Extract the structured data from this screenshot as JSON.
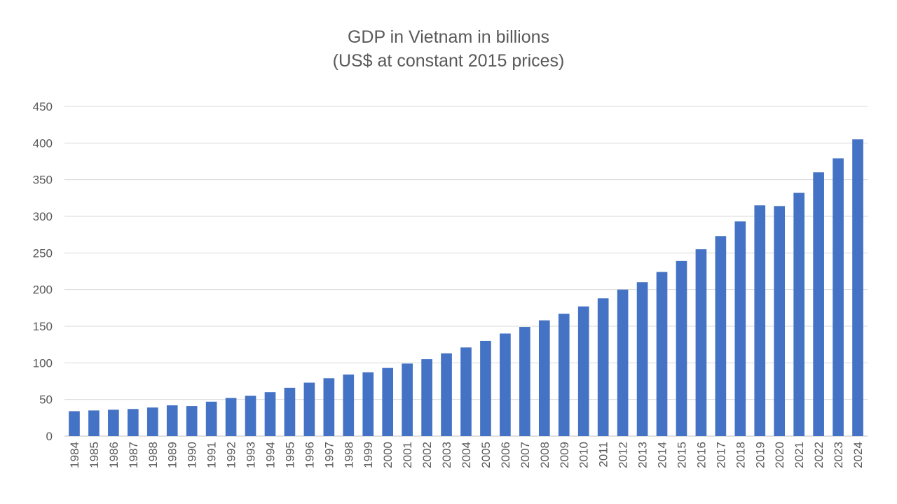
{
  "chart_data": {
    "type": "bar",
    "title": [
      "GDP in Vietnam in billions",
      "(US$ at constant 2015 prices)"
    ],
    "xlabel": "",
    "ylabel": "",
    "ylim": [
      0,
      450
    ],
    "yticks": [
      0,
      50,
      100,
      150,
      200,
      250,
      300,
      350,
      400,
      450
    ],
    "grid": true,
    "legend": "none",
    "bar_color": "#4472C4",
    "categories": [
      "1984",
      "1985",
      "1986",
      "1987",
      "1988",
      "1989",
      "1990",
      "1991",
      "1992",
      "1993",
      "1994",
      "1995",
      "1996",
      "1997",
      "1998",
      "1999",
      "2000",
      "2001",
      "2002",
      "2003",
      "2004",
      "2005",
      "2006",
      "2007",
      "2008",
      "2009",
      "2010",
      "2011",
      "2012",
      "2013",
      "2014",
      "2015",
      "2016",
      "2017",
      "2018",
      "2019",
      "2020",
      "2021",
      "2022",
      "2023",
      "2024"
    ],
    "values": [
      34,
      35,
      36,
      37,
      39,
      42,
      41,
      47,
      52,
      55,
      60,
      66,
      73,
      79,
      84,
      87,
      93,
      99,
      105,
      113,
      121,
      130,
      140,
      149,
      158,
      167,
      177,
      188,
      200,
      210,
      224,
      239,
      255,
      273,
      293,
      315,
      314,
      332,
      360,
      379,
      405
    ]
  }
}
